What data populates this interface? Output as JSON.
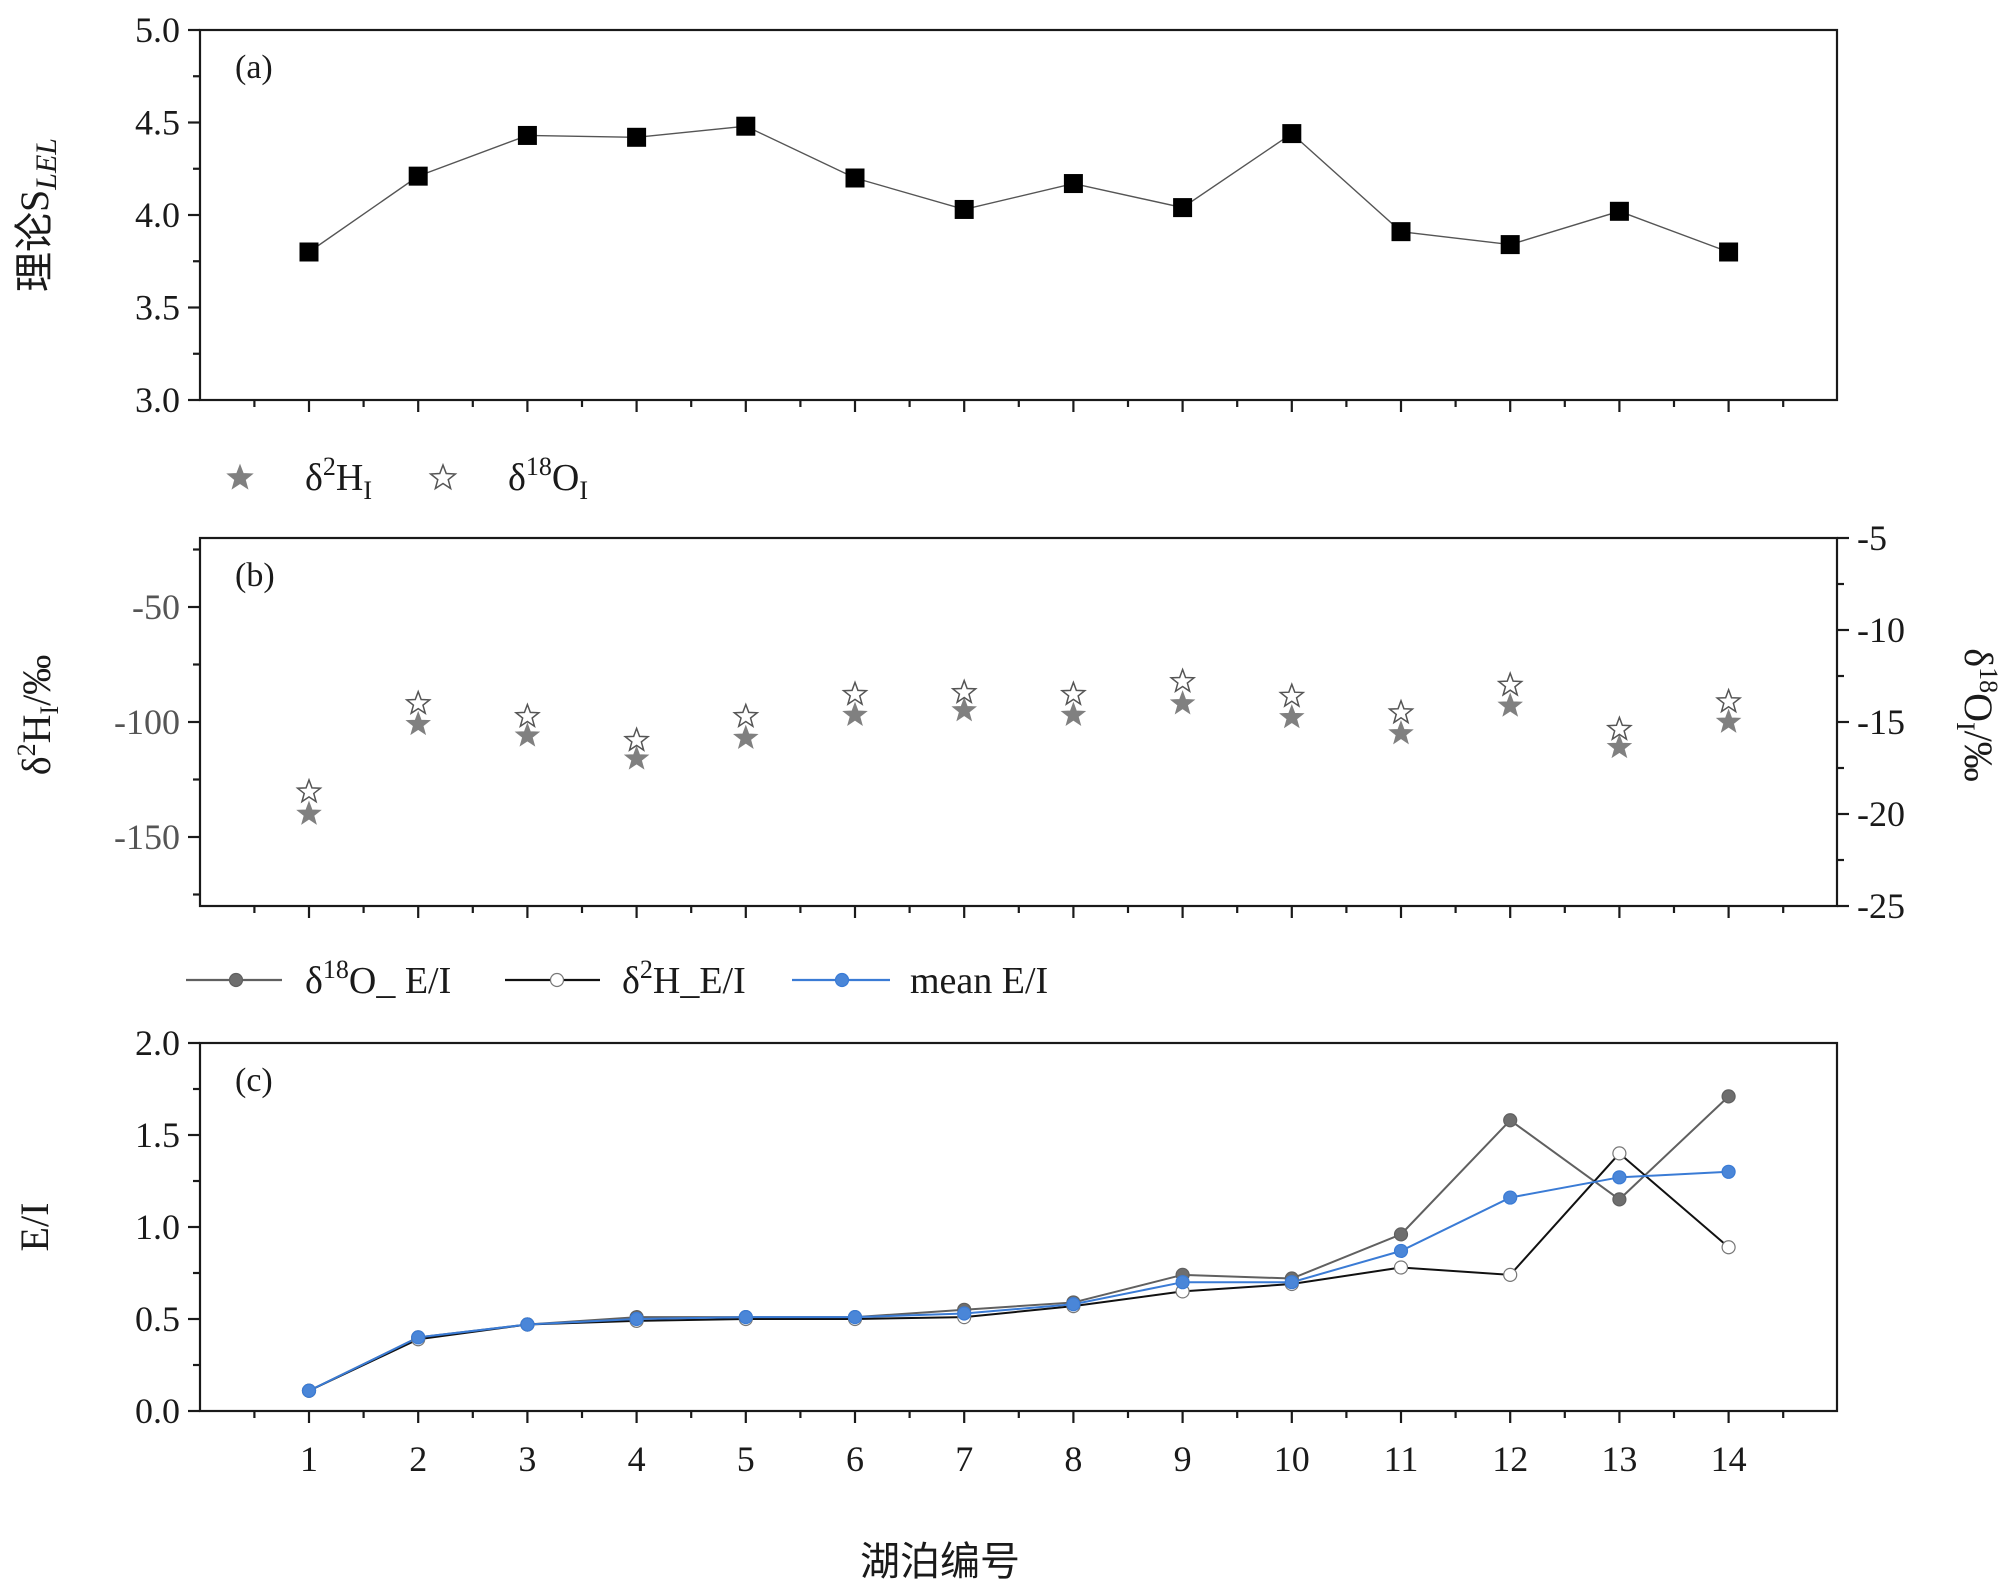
{
  "chart_data": [
    {
      "type": "line",
      "panel_label": "(a)",
      "ylabel_main": "理论S",
      "ylabel_sub": "LEL",
      "ylim": [
        3.0,
        5.0
      ],
      "yticks": [
        "3.0",
        "3.5",
        "4.0",
        "4.5",
        "5.0"
      ],
      "x": [
        1,
        2,
        3,
        4,
        5,
        6,
        7,
        8,
        9,
        10,
        11,
        12,
        13,
        14
      ],
      "series": [
        {
          "name": "理论S_LEL",
          "color": "#000000",
          "values": [
            3.8,
            4.21,
            4.43,
            4.42,
            4.48,
            4.2,
            4.03,
            4.17,
            4.04,
            4.44,
            3.91,
            3.84,
            4.02,
            3.8
          ]
        }
      ]
    },
    {
      "type": "scatter",
      "panel_label": "(b)",
      "legend": [
        {
          "sym": "δ",
          "sup": "2",
          "base": "H",
          "sub": "I"
        },
        {
          "sym": "δ",
          "sup": "18",
          "base": "O",
          "sub": "I"
        }
      ],
      "ylabel_left": {
        "sym": "δ",
        "sup": "2",
        "base": "H",
        "sub": "I",
        "unit": "/‰"
      },
      "ylabel_right": {
        "sym": "δ",
        "sup": "18",
        "base": "O",
        "sub": "I",
        "unit": "/‰"
      },
      "ylim_left": [
        -180,
        -20
      ],
      "yticks_left": [
        "-50",
        "-100",
        "-150"
      ],
      "ylim_right": [
        -25,
        -5
      ],
      "yticks_right": [
        "-5",
        "-10",
        "-15",
        "-20",
        "-25"
      ],
      "x": [
        1,
        2,
        3,
        4,
        5,
        6,
        7,
        8,
        9,
        10,
        11,
        12,
        13,
        14
      ],
      "series": [
        {
          "name": "δ2H_I",
          "axis": "left",
          "color": "#808080",
          "values": [
            -140,
            -101,
            -106,
            -116,
            -107,
            -97,
            -95,
            -97,
            -92,
            -98,
            -105,
            -93,
            -111,
            -100
          ]
        },
        {
          "name": "δ18O_I",
          "axis": "right",
          "color": "#808080",
          "values": [
            -18.8,
            -14.0,
            -14.7,
            -16.0,
            -14.7,
            -13.5,
            -13.4,
            -13.5,
            -12.8,
            -13.6,
            -14.5,
            -13.0,
            -15.4,
            -13.9
          ]
        }
      ]
    },
    {
      "type": "line",
      "panel_label": "(c)",
      "ylabel": "E/I",
      "xlabel": "湖泊编号",
      "ylim": [
        0.0,
        2.0
      ],
      "yticks": [
        "0.0",
        "0.5",
        "1.0",
        "1.5",
        "2.0"
      ],
      "x": [
        1,
        2,
        3,
        4,
        5,
        6,
        7,
        8,
        9,
        10,
        11,
        12,
        13,
        14
      ],
      "xticks": [
        "1",
        "2",
        "3",
        "4",
        "5",
        "6",
        "7",
        "8",
        "9",
        "10",
        "11",
        "12",
        "13",
        "14"
      ],
      "legend": [
        {
          "label_pre": "δ",
          "label_sup": "18",
          "label_post": "O_ E/I"
        },
        {
          "label_pre": "δ",
          "label_sup": "2",
          "label_post": "H_E/I"
        },
        {
          "label_pre": "",
          "label_sup": "",
          "label_post": "mean E/I"
        }
      ],
      "series": [
        {
          "name": "δ18O_ E/I",
          "color": "#606060",
          "marker_fill": "#6e6e6e",
          "values": [
            0.11,
            0.4,
            0.47,
            0.51,
            0.51,
            0.51,
            0.55,
            0.59,
            0.74,
            0.72,
            0.96,
            1.58,
            1.15,
            1.71
          ]
        },
        {
          "name": "δ2H_E/I",
          "color": "#111111",
          "marker_fill": "#ffffff",
          "values": [
            0.11,
            0.39,
            0.47,
            0.49,
            0.5,
            0.5,
            0.51,
            0.57,
            0.65,
            0.69,
            0.78,
            0.74,
            1.4,
            0.89
          ]
        },
        {
          "name": "mean E/I",
          "color": "#3a7bd5",
          "marker_fill": "#4a86d8",
          "values": [
            0.11,
            0.4,
            0.47,
            0.5,
            0.51,
            0.51,
            0.53,
            0.58,
            0.7,
            0.7,
            0.87,
            1.16,
            1.27,
            1.3
          ]
        }
      ]
    }
  ]
}
